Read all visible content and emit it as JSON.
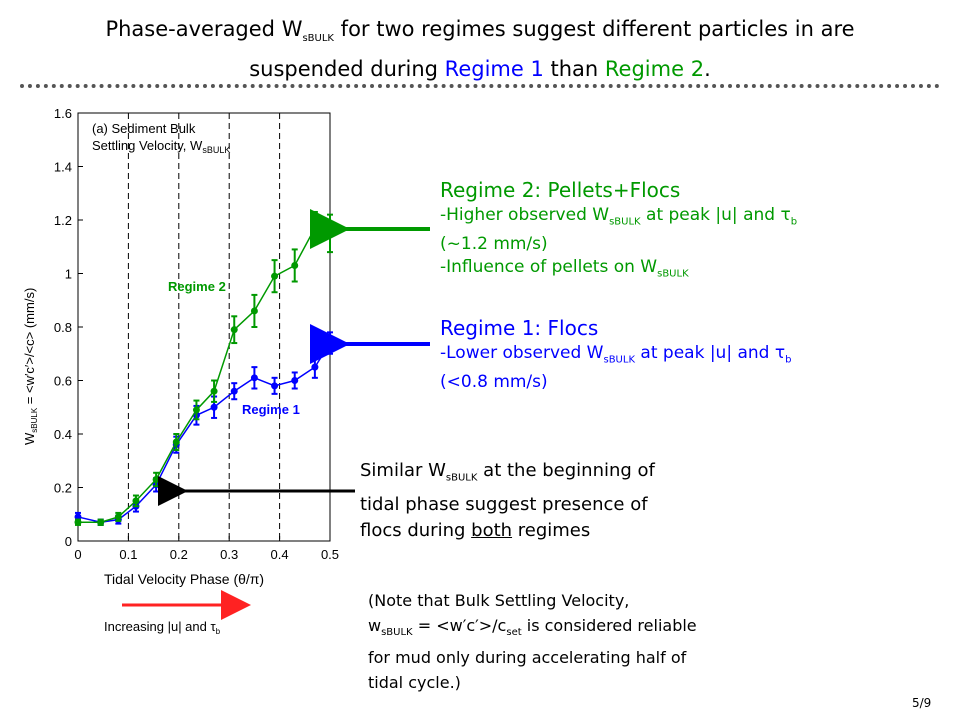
{
  "slide": {
    "title_line1_a": "Phase-averaged W",
    "title_line1_sub": "sBULK",
    "title_line1_b": " for two regimes suggest different particles in are",
    "title_line2_a": "suspended during ",
    "title_line2_r1": "Regime 1",
    "title_line2_b": " than ",
    "title_line2_r2": "Regime 2",
    "title_line2_c": ".",
    "page_number": "5/9"
  },
  "colors": {
    "regime1": "#0000ff",
    "regime2": "#009900",
    "arrow_red": "#ff2222",
    "arrow_black": "#000000"
  },
  "chart_data": {
    "type": "line",
    "title_line1": "(a) Sediment Bulk",
    "title_line2": "Settling Velocity, W",
    "title_sub": "sBULK",
    "xlabel": "Tidal Velocity Phase (θ/π)",
    "ylabel_pre": "W",
    "ylabel_sub": "sBULK",
    "ylabel_post": " = <w′c′>/<c> (mm/s)",
    "xlim": [
      0,
      0.5
    ],
    "ylim": [
      0,
      1.6
    ],
    "xticks": [
      "0",
      "0.1",
      "0.2",
      "0.3",
      "0.4",
      "0.5"
    ],
    "yticks": [
      "0",
      "0.2",
      "0.4",
      "0.6",
      "0.8",
      "1",
      "1.2",
      "1.4",
      "1.6"
    ],
    "vertical_dashed_lines": [
      0.1,
      0.2,
      0.3,
      0.4
    ],
    "series": [
      {
        "name": "Regime 1",
        "color": "#0000ff",
        "x": [
          0,
          0.045,
          0.08,
          0.115,
          0.155,
          0.195,
          0.235,
          0.27,
          0.31,
          0.35,
          0.39,
          0.43,
          0.47,
          0.5
        ],
        "y": [
          0.09,
          0.07,
          0.08,
          0.13,
          0.21,
          0.36,
          0.47,
          0.5,
          0.56,
          0.61,
          0.58,
          0.6,
          0.65,
          0.74
        ],
        "err": [
          0.015,
          0.01,
          0.015,
          0.02,
          0.025,
          0.03,
          0.035,
          0.04,
          0.03,
          0.04,
          0.03,
          0.03,
          0.04,
          0.04
        ]
      },
      {
        "name": "Regime 2",
        "color": "#009900",
        "x": [
          0,
          0.045,
          0.08,
          0.115,
          0.155,
          0.195,
          0.235,
          0.27,
          0.31,
          0.35,
          0.39,
          0.43,
          0.47,
          0.5
        ],
        "y": [
          0.07,
          0.07,
          0.09,
          0.15,
          0.23,
          0.37,
          0.49,
          0.56,
          0.79,
          0.86,
          0.99,
          1.03,
          1.17,
          1.15
        ],
        "err": [
          0.01,
          0.01,
          0.015,
          0.02,
          0.025,
          0.03,
          0.035,
          0.04,
          0.05,
          0.06,
          0.06,
          0.06,
          0.06,
          0.07
        ]
      }
    ],
    "labels": {
      "regime2": "Regime 2",
      "regime1": "Regime 1"
    }
  },
  "annotations": {
    "regime2_head": "Regime 2: Pellets+Flocs",
    "regime2_l1_a": "-Higher observed W",
    "regime2_l1_sub": "sBULK",
    "regime2_l1_b": "  at peak |u| and τ",
    "regime2_l1_sub2": "b",
    "regime2_l2": "(~1.2 mm/s)",
    "regime2_l3_a": "-Influence of pellets on W",
    "regime2_l3_sub": "sBULK",
    "regime1_head": "Regime 1: Flocs",
    "regime1_l1_a": "-Lower observed W",
    "regime1_l1_sub": "sBULK",
    "regime1_l1_b": "  at peak |u| and τ",
    "regime1_l1_sub2": "b",
    "regime1_l2": "(<0.8 mm/s)",
    "similar_l1_a": "Similar W",
    "similar_l1_sub": "sBULK",
    "similar_l1_b": "  at the beginning of",
    "similar_l2": "tidal phase suggest presence of",
    "similar_l3_a": "flocs during ",
    "similar_l3_u": "both",
    "similar_l3_b": " regimes",
    "increasing_a": "Increasing |u| and τ",
    "increasing_sub": "b",
    "note_l1": "(Note that Bulk Settling Velocity,",
    "note_l2_a": "w",
    "note_l2_sub": "sBULK",
    "note_l2_b": " = <w′c′>/c",
    "note_l2_sub2": "set",
    "note_l2_c": "  is considered reliable",
    "note_l3": "for mud only during accelerating half of",
    "note_l4": "tidal cycle.)"
  }
}
